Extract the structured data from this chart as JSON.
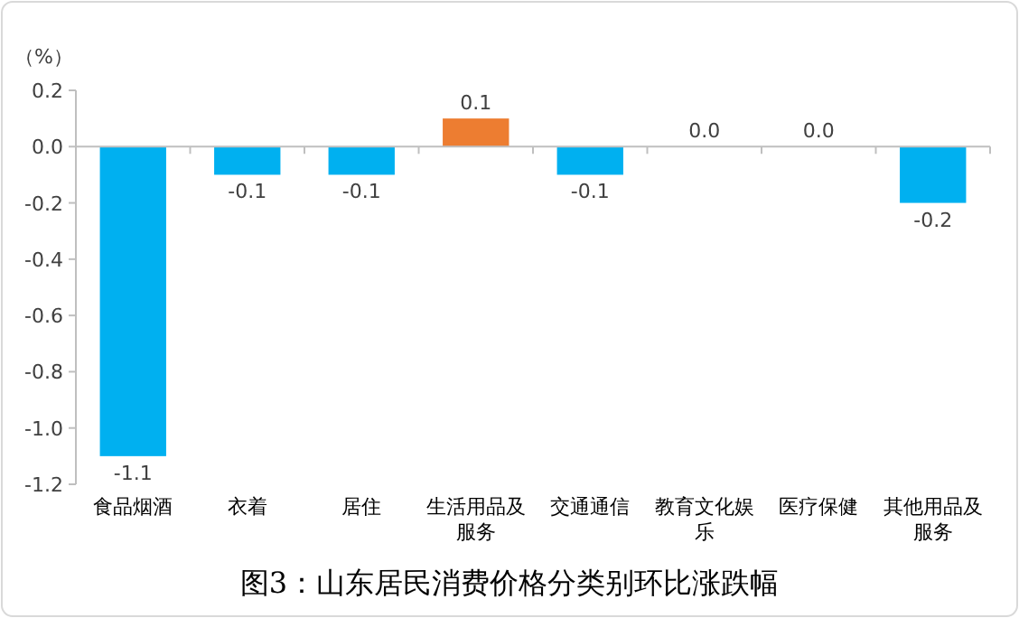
{
  "chart_data": {
    "type": "bar",
    "title": "图3：山东居民消费价格分类别环比涨跌幅",
    "ylabel": "（%）",
    "categories": [
      "食品烟酒",
      "衣着",
      "居住",
      "生活用品及服务",
      "交通通信",
      "教育文化娱乐",
      "医疗保健",
      "其他用品及服务"
    ],
    "values": [
      -1.1,
      -0.1,
      -0.1,
      0.1,
      -0.1,
      0.0,
      0.0,
      -0.2
    ],
    "colors": [
      "#00b0f0",
      "#00b0f0",
      "#00b0f0",
      "#ed7d31",
      "#00b0f0",
      "#00b0f0",
      "#00b0f0",
      "#00b0f0"
    ],
    "value_labels": [
      "-1.1",
      "-0.1",
      "-0.1",
      "0.1",
      "-0.1",
      "0.0",
      "0.0",
      "-0.2"
    ],
    "ylim": [
      -1.2,
      0.2
    ],
    "yticks": [
      0.2,
      {
        "value": 0,
        "label": "0.0"
      },
      -0.2,
      -0.4,
      -0.6,
      -0.8,
      {
        "value": -1,
        "label": "-1.0"
      },
      -1.2
    ]
  }
}
